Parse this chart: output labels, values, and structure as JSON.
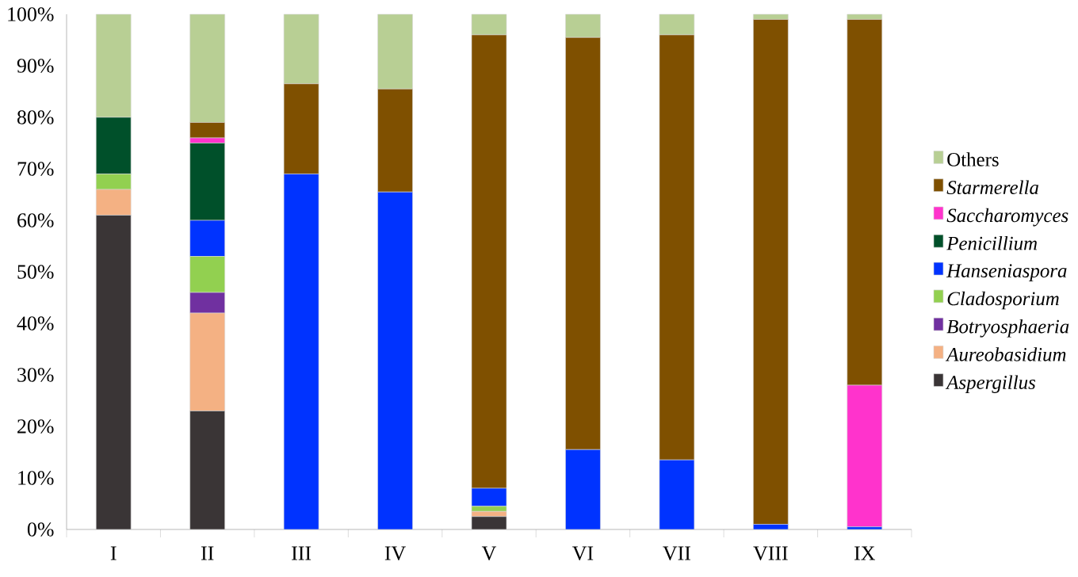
{
  "chart_data": {
    "type": "bar",
    "stacked": true,
    "legend": "right",
    "categories": [
      "I",
      "II",
      "III",
      "IV",
      "V",
      "VI",
      "VII",
      "VIII",
      "IX"
    ],
    "series": [
      {
        "name": "Aspergillus",
        "color": "#3a3536",
        "values": [
          61,
          23,
          0,
          0,
          2.5,
          0,
          0,
          0,
          0
        ]
      },
      {
        "name": "Aureobasidium",
        "color": "#f4b183",
        "values": [
          5,
          19,
          0,
          0,
          1,
          0,
          0,
          0,
          0
        ]
      },
      {
        "name": "Botryosphaeria",
        "color": "#7030a0",
        "values": [
          0,
          4,
          0,
          0,
          0,
          0,
          0,
          0,
          0
        ]
      },
      {
        "name": "Cladosporium",
        "color": "#92d050",
        "values": [
          3,
          7,
          0,
          0,
          1,
          0,
          0,
          0,
          0
        ]
      },
      {
        "name": "Hanseniaspora",
        "color": "#0033ff",
        "values": [
          0,
          7,
          69,
          65.5,
          3.5,
          15.5,
          13.5,
          1,
          0.5
        ]
      },
      {
        "name": "Penicillium",
        "color": "#00502a",
        "values": [
          11,
          15,
          0,
          0,
          0,
          0,
          0,
          0,
          0
        ]
      },
      {
        "name": "Saccharomyces",
        "color": "#ff33cc",
        "values": [
          0,
          1,
          0,
          0,
          0,
          0,
          0,
          0,
          27.5
        ]
      },
      {
        "name": "Starmerella",
        "color": "#7f5000",
        "values": [
          0,
          3,
          17.5,
          20,
          88,
          80,
          82.5,
          98,
          71
        ]
      },
      {
        "name": "Others",
        "color": "#b8cf94",
        "values": [
          20,
          21,
          13.5,
          14.5,
          4,
          4.5,
          4,
          1,
          1
        ]
      }
    ],
    "ylim": [
      0,
      100
    ],
    "yticks": [
      {
        "value": 0,
        "label": "0%"
      },
      {
        "value": 10,
        "label": "10%"
      },
      {
        "value": 20,
        "label": "20%"
      },
      {
        "value": 30,
        "label": "30%"
      },
      {
        "value": 40,
        "label": "40%"
      },
      {
        "value": 50,
        "label": "50%"
      },
      {
        "value": 60,
        "label": "60%"
      },
      {
        "value": 70,
        "label": "70%"
      },
      {
        "value": 80,
        "label": "80%"
      },
      {
        "value": 90,
        "label": "90%"
      },
      {
        "value": 100,
        "label": "100%"
      }
    ]
  }
}
